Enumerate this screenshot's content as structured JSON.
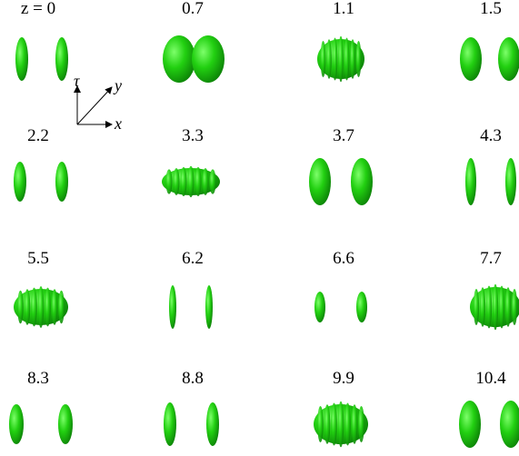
{
  "panels": [
    {
      "label": "z = 0"
    },
    {
      "label": "0.7"
    },
    {
      "label": "1.1"
    },
    {
      "label": "1.5"
    },
    {
      "label": "2.2"
    },
    {
      "label": "3.3"
    },
    {
      "label": "3.7"
    },
    {
      "label": "4.3"
    },
    {
      "label": "5.5"
    },
    {
      "label": "6.2"
    },
    {
      "label": "6.6"
    },
    {
      "label": "7.7"
    },
    {
      "label": "8.3"
    },
    {
      "label": "8.8"
    },
    {
      "label": "9.9"
    },
    {
      "label": "10.4"
    }
  ],
  "axes": {
    "tau": "τ",
    "y": "y",
    "x": "x"
  }
}
